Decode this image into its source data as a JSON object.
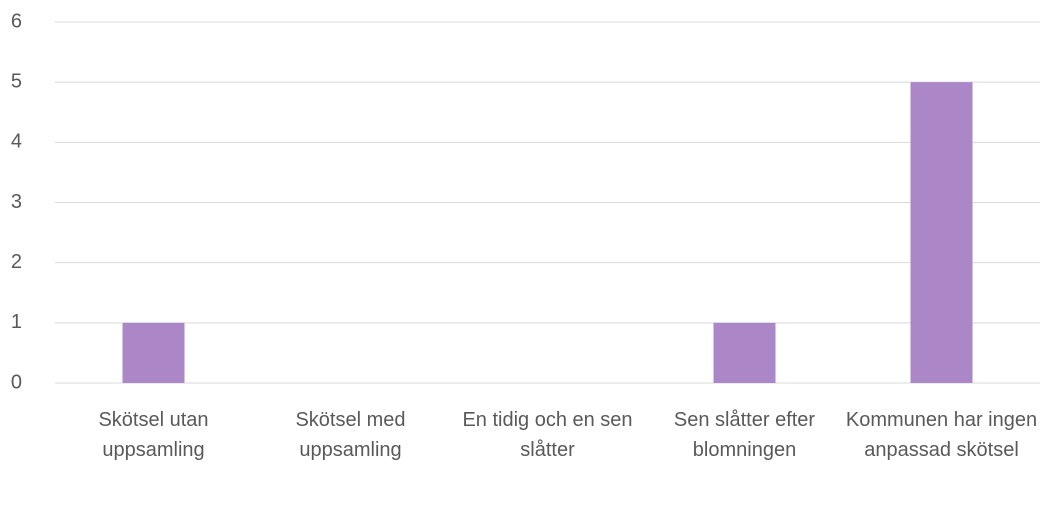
{
  "chart_data": {
    "type": "bar",
    "categories": [
      "Skötsel utan uppsamling",
      "Skötsel med uppsamling",
      "En tidig och en sen slåtter",
      "Sen slåtter efter blomningen",
      "Kommunen har ingen anpassad skötsel"
    ],
    "values": [
      1,
      0,
      0,
      1,
      5
    ],
    "color": "#ab87c8",
    "ylim": [
      0,
      6
    ],
    "yticks": [
      0,
      1,
      2,
      3,
      4,
      5,
      6
    ],
    "grid": true
  }
}
